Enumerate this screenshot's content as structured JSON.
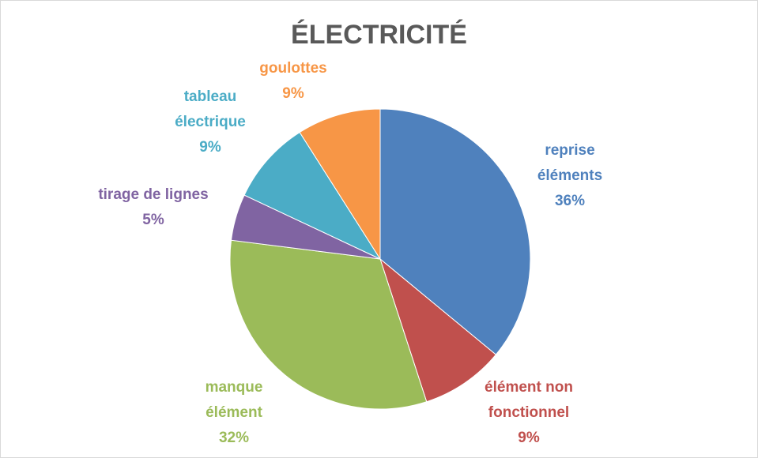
{
  "chart_data": {
    "type": "pie",
    "title": "ÉLECTRICITÉ",
    "categories": [
      "reprise éléments",
      "élément non fonctionnel",
      "manque élément",
      "tirage de lignes",
      "tableau électrique",
      "goulottes"
    ],
    "values": [
      36,
      9,
      32,
      5,
      9,
      9
    ],
    "value_labels": [
      "36%",
      "9%",
      "32%",
      "5%",
      "9%",
      "9%"
    ],
    "colors": [
      "#4f81bd",
      "#c0504d",
      "#9bbb59",
      "#8064a2",
      "#4bacc6",
      "#f79646"
    ]
  }
}
